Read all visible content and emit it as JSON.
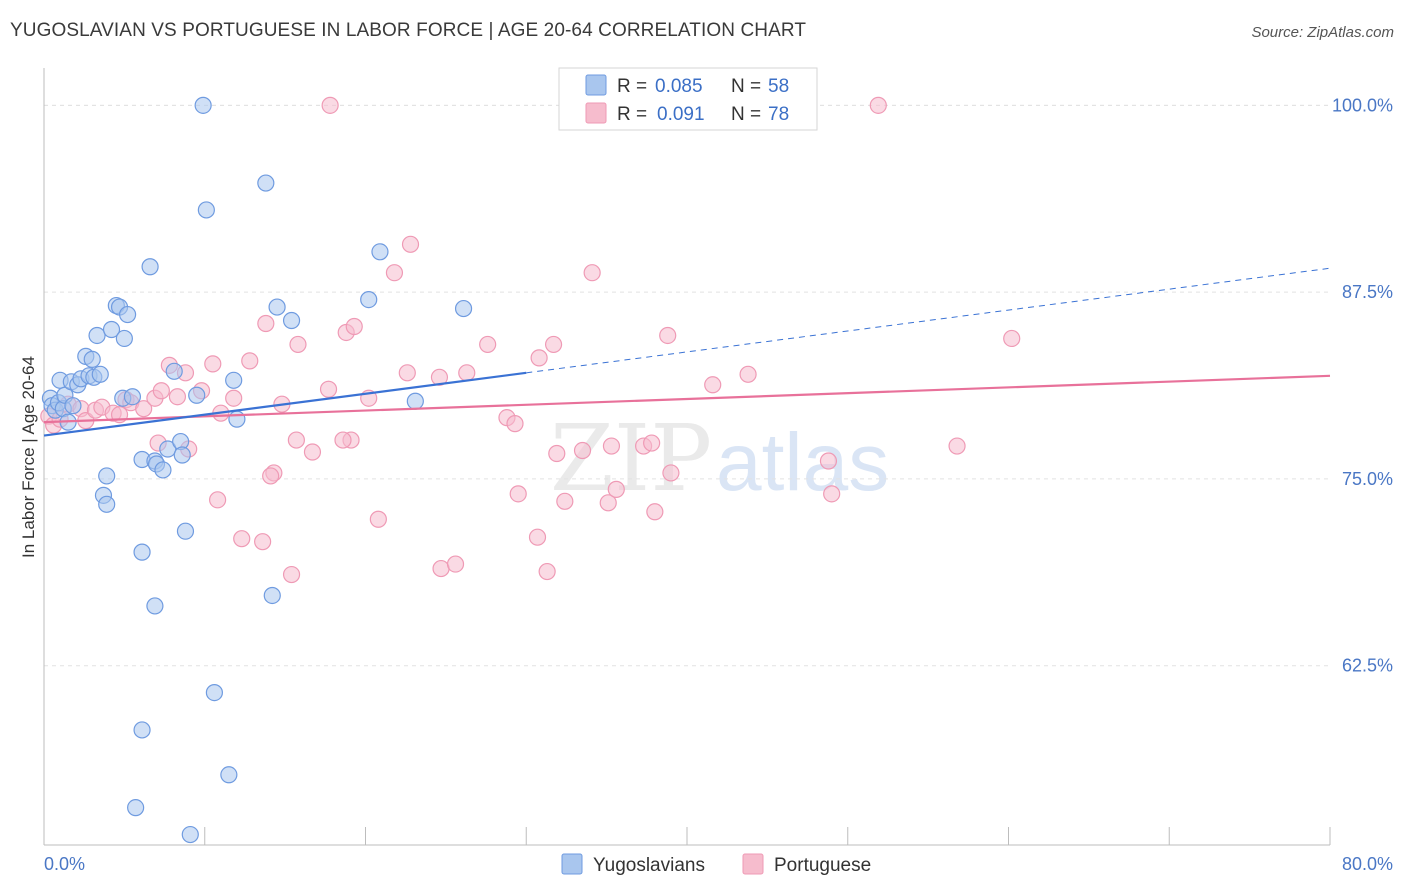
{
  "title": "YUGOSLAVIAN VS PORTUGUESE IN LABOR FORCE | AGE 20-64 CORRELATION CHART",
  "source": "Source: ZipAtlas.com",
  "watermark": {
    "zip": "ZIP",
    "atlas": "atlas"
  },
  "colors": {
    "blue_fill": "#a9c6ee",
    "blue_stroke": "#6f9be0",
    "blue_line": "#3a72d4",
    "pink_fill": "#f6bccd",
    "pink_stroke": "#ef9ab5",
    "pink_line": "#e8719a",
    "tick_text": "#4a77c5",
    "grid": "#e2e2e2"
  },
  "legend": {
    "rows": [
      {
        "r_label": "R =",
        "r_value": "0.085",
        "n_label": "N =",
        "n_value": "58",
        "series": "Yugoslavians"
      },
      {
        "r_label": "R =",
        "r_value": "0.091",
        "n_label": "N =",
        "n_value": "78",
        "series": "Portuguese"
      }
    ]
  },
  "bottom_legend": [
    "Yugoslavians",
    "Portuguese"
  ],
  "chart_data": {
    "type": "scatter",
    "title": "YUGOSLAVIAN VS PORTUGUESE IN LABOR FORCE | AGE 20-64 CORRELATION CHART",
    "xlabel": "",
    "ylabel": "In Labor Force | Age 20-64",
    "xlim": [
      0,
      80
    ],
    "ylim": [
      50.5,
      102.5
    ],
    "x_tick_labels": [
      "0.0%",
      "80.0%"
    ],
    "y_ticks": [
      62.5,
      75.0,
      87.5,
      100.0
    ],
    "y_tick_labels": [
      "62.5%",
      "75.0%",
      "87.5%",
      "100.0%"
    ],
    "grid": true,
    "legend_position": "top-center",
    "series": [
      {
        "name": "Yugoslavians",
        "color": "#a9c6ee",
        "points": [
          [
            0.4,
            80.4
          ],
          [
            0.5,
            79.9
          ],
          [
            0.7,
            79.6
          ],
          [
            0.9,
            80.1
          ],
          [
            1.0,
            81.6
          ],
          [
            1.2,
            79.7
          ],
          [
            1.3,
            80.6
          ],
          [
            1.5,
            78.8
          ],
          [
            1.7,
            81.5
          ],
          [
            1.8,
            79.9
          ],
          [
            2.1,
            81.3
          ],
          [
            2.3,
            81.7
          ],
          [
            2.6,
            83.2
          ],
          [
            2.8,
            81.9
          ],
          [
            3.0,
            83.0
          ],
          [
            3.1,
            81.8
          ],
          [
            3.3,
            84.6
          ],
          [
            3.5,
            82.0
          ],
          [
            4.2,
            85.0
          ],
          [
            4.5,
            86.6
          ],
          [
            4.7,
            86.5
          ],
          [
            5.0,
            84.4
          ],
          [
            5.2,
            86.0
          ],
          [
            4.9,
            80.4
          ],
          [
            5.5,
            80.5
          ],
          [
            6.6,
            89.2
          ],
          [
            6.1,
            76.3
          ],
          [
            6.9,
            76.2
          ],
          [
            7.0,
            76.0
          ],
          [
            7.4,
            75.6
          ],
          [
            7.7,
            77.0
          ],
          [
            8.1,
            82.2
          ],
          [
            8.5,
            77.5
          ],
          [
            8.6,
            76.6
          ],
          [
            8.8,
            71.5
          ],
          [
            9.5,
            80.6
          ],
          [
            9.9,
            100.0
          ],
          [
            10.1,
            93.0
          ],
          [
            11.8,
            81.6
          ],
          [
            12.0,
            79.0
          ],
          [
            13.8,
            94.8
          ],
          [
            14.2,
            67.2
          ],
          [
            14.5,
            86.5
          ],
          [
            15.4,
            85.6
          ],
          [
            20.2,
            87.0
          ],
          [
            20.9,
            90.2
          ],
          [
            23.1,
            80.2
          ],
          [
            26.1,
            86.4
          ],
          [
            3.9,
            75.2
          ],
          [
            3.7,
            73.9
          ],
          [
            3.9,
            73.3
          ],
          [
            6.1,
            70.1
          ],
          [
            6.9,
            66.5
          ],
          [
            10.6,
            60.7
          ],
          [
            6.1,
            58.2
          ],
          [
            11.5,
            55.2
          ],
          [
            5.7,
            53.0
          ],
          [
            9.1,
            51.2
          ]
        ],
        "trend": {
          "x": [
            0,
            30
          ],
          "y": [
            77.9,
            82.1
          ],
          "dashed_extension": {
            "x": [
              30,
              80
            ],
            "y": [
              82.1,
              89.1
            ]
          }
        }
      },
      {
        "name": "Portuguese",
        "color": "#f6bccd",
        "points": [
          [
            0.3,
            79.2
          ],
          [
            0.6,
            78.6
          ],
          [
            1.0,
            79.0
          ],
          [
            1.5,
            80.0
          ],
          [
            2.3,
            79.7
          ],
          [
            2.6,
            78.9
          ],
          [
            3.2,
            79.6
          ],
          [
            3.6,
            79.8
          ],
          [
            4.3,
            79.4
          ],
          [
            4.7,
            79.3
          ],
          [
            5.1,
            80.3
          ],
          [
            5.4,
            80.1
          ],
          [
            6.2,
            79.7
          ],
          [
            6.9,
            80.4
          ],
          [
            7.3,
            80.9
          ],
          [
            7.8,
            82.6
          ],
          [
            8.3,
            80.5
          ],
          [
            8.8,
            82.1
          ],
          [
            9.8,
            80.9
          ],
          [
            10.5,
            82.7
          ],
          [
            11.0,
            79.4
          ],
          [
            11.8,
            80.4
          ],
          [
            12.8,
            82.9
          ],
          [
            13.8,
            85.4
          ],
          [
            14.8,
            80.0
          ],
          [
            15.8,
            84.0
          ],
          [
            17.7,
            81.0
          ],
          [
            18.8,
            84.8
          ],
          [
            19.3,
            85.2
          ],
          [
            20.2,
            80.4
          ],
          [
            21.8,
            88.8
          ],
          [
            22.8,
            90.7
          ],
          [
            22.6,
            82.1
          ],
          [
            24.6,
            81.8
          ],
          [
            26.3,
            82.1
          ],
          [
            27.6,
            84.0
          ],
          [
            28.8,
            79.1
          ],
          [
            29.3,
            78.7
          ],
          [
            30.8,
            83.1
          ],
          [
            31.7,
            84.0
          ],
          [
            34.1,
            88.8
          ],
          [
            35.3,
            77.2
          ],
          [
            38.8,
            84.6
          ],
          [
            41.6,
            81.3
          ],
          [
            43.8,
            82.0
          ],
          [
            56.8,
            77.2
          ],
          [
            60.2,
            84.4
          ],
          [
            19.1,
            77.6
          ],
          [
            18.6,
            77.6
          ],
          [
            15.7,
            77.6
          ],
          [
            16.7,
            76.8
          ],
          [
            14.3,
            75.4
          ],
          [
            14.1,
            75.2
          ],
          [
            9.0,
            77.0
          ],
          [
            7.1,
            77.4
          ],
          [
            10.8,
            73.6
          ],
          [
            12.3,
            71.0
          ],
          [
            13.6,
            70.8
          ],
          [
            15.4,
            68.6
          ],
          [
            20.8,
            72.3
          ],
          [
            24.7,
            69.0
          ],
          [
            25.6,
            69.3
          ],
          [
            29.5,
            74.0
          ],
          [
            30.7,
            71.1
          ],
          [
            31.3,
            68.8
          ],
          [
            31.9,
            76.7
          ],
          [
            32.4,
            73.5
          ],
          [
            33.5,
            76.9
          ],
          [
            35.1,
            73.4
          ],
          [
            35.6,
            74.3
          ],
          [
            37.3,
            77.2
          ],
          [
            37.8,
            77.4
          ],
          [
            38.0,
            72.8
          ],
          [
            39.0,
            75.4
          ],
          [
            48.8,
            76.2
          ],
          [
            49.0,
            74.0
          ],
          [
            17.8,
            100.0
          ],
          [
            51.9,
            100.0
          ]
        ],
        "trend": {
          "x": [
            0,
            80
          ],
          "y": [
            78.8,
            81.9
          ]
        }
      }
    ]
  }
}
